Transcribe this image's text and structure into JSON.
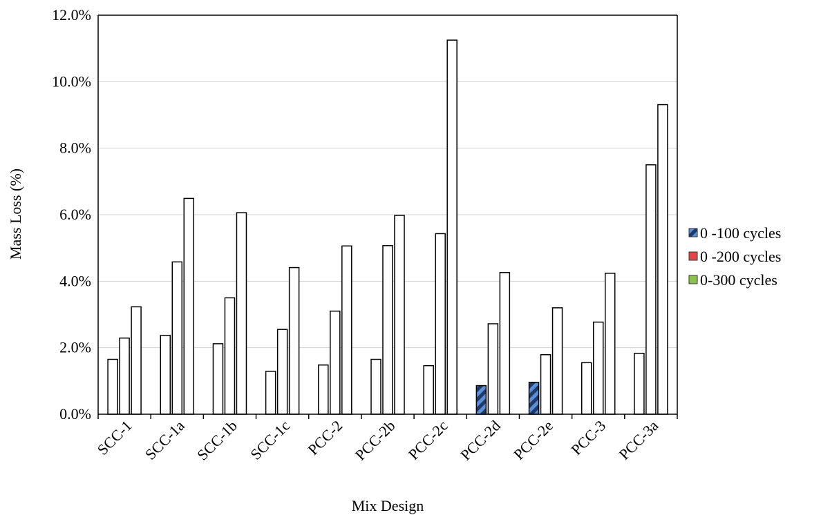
{
  "chart_data": {
    "type": "bar",
    "title": "",
    "xlabel": "Mix Design",
    "ylabel": "Mass Loss (%)",
    "ylim": [
      0,
      12
    ],
    "yticks": [
      "0.0%",
      "2.0%",
      "4.0%",
      "6.0%",
      "8.0%",
      "10.0%",
      "12.0%"
    ],
    "grid": true,
    "legend_position": "right",
    "categories": [
      "SCC-1",
      "SCC-1a",
      "SCC-1b",
      "SCC-1c",
      "PCC-2",
      "PCC-2b",
      "PCC-2c",
      "PCC-2d",
      "PCC-2e",
      "PCC-3",
      "PCC-3a"
    ],
    "series": [
      {
        "name": "0 -100 cycles",
        "values": [
          1.65,
          2.37,
          2.12,
          1.29,
          1.48,
          1.65,
          1.46,
          0.86,
          0.96,
          1.55,
          1.83
        ],
        "styles": [
          "plain",
          "plain",
          "plain",
          "plain",
          "plain",
          "plain",
          "plain",
          "hatched",
          "hatched",
          "plain",
          "plain"
        ],
        "legend_color": "#4a7ec3"
      },
      {
        "name": "0 -200 cycles",
        "values": [
          2.29,
          4.58,
          3.5,
          2.55,
          3.1,
          5.07,
          5.43,
          2.72,
          1.79,
          2.77,
          7.5
        ],
        "styles": [
          "plain",
          "plain",
          "plain",
          "plain",
          "plain",
          "plain",
          "plain",
          "plain",
          "plain",
          "plain",
          "plain"
        ],
        "legend_color": "#e04848"
      },
      {
        "name": "0-300 cycles",
        "values": [
          3.23,
          6.49,
          6.06,
          4.41,
          5.06,
          5.98,
          11.25,
          4.26,
          3.2,
          4.24,
          9.31
        ],
        "styles": [
          "plain",
          "plain",
          "plain",
          "plain",
          "plain",
          "plain",
          "plain",
          "plain",
          "plain",
          "plain",
          "plain"
        ],
        "legend_color": "#8bc34a"
      }
    ]
  }
}
